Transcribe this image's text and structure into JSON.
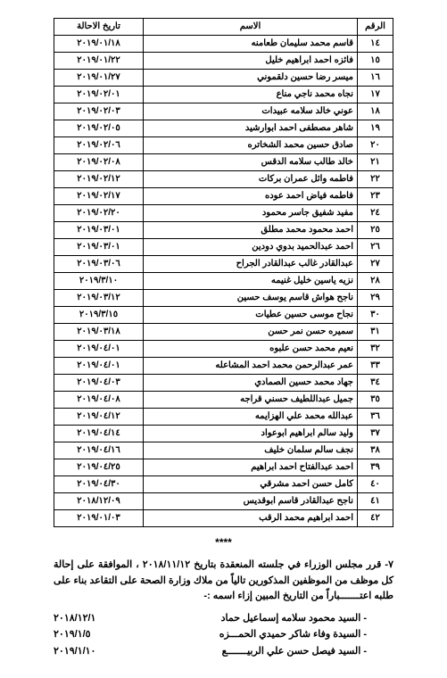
{
  "table": {
    "headers": {
      "num": "الرقم",
      "name": "الاسم",
      "date": "تاريخ الاحالة"
    },
    "rows": [
      {
        "num": "١٤",
        "name": "قاسم محمد سليمان طعامنه",
        "date": "٢٠١٩/٠١/١٨"
      },
      {
        "num": "١٥",
        "name": "فائزه احمد ابراهيم خليل",
        "date": "٢٠١٩/٠١/٢٢"
      },
      {
        "num": "١٦",
        "name": "ميسر رضا حسين دلقموني",
        "date": "٢٠١٩/٠١/٢٧"
      },
      {
        "num": "١٧",
        "name": "نجاه محمد ناجي مناع",
        "date": "٢٠١٩/٠٢/٠١"
      },
      {
        "num": "١٨",
        "name": "عوني خالد سلامه عبيدات",
        "date": "٢٠١٩/٠٢/٠٣"
      },
      {
        "num": "١٩",
        "name": "شاهر مصطفى احمد ابوارشيد",
        "date": "٢٠١٩/٠٢/٠٥"
      },
      {
        "num": "٢٠",
        "name": "صادق حسين محمد الشخاتره",
        "date": "٢٠١٩/٠٢/٠٦"
      },
      {
        "num": "٢١",
        "name": "خالد طالب سلامه الدقس",
        "date": "٢٠١٩/٠٢/٠٨"
      },
      {
        "num": "٢٢",
        "name": "فاطمه وائل عمران بركات",
        "date": "٢٠١٩/٠٢/١٢"
      },
      {
        "num": "٢٣",
        "name": "فاطمه فياض احمد عوده",
        "date": "٢٠١٩/٠٢/١٧"
      },
      {
        "num": "٢٤",
        "name": "مفيد شفيق جاسر محمود",
        "date": "٢٠١٩/٠٢/٢٠"
      },
      {
        "num": "٢٥",
        "name": "احمد محمود محمد مطلق",
        "date": "٢٠١٩/٠٣/٠١"
      },
      {
        "num": "٢٦",
        "name": "احمد عبدالحميد بدوي دودين",
        "date": "٢٠١٩/٠٣/٠١"
      },
      {
        "num": "٢٧",
        "name": "عبدالقادر غالب عبدالقادر الجراح",
        "date": "٢٠١٩/٠٣/٠٦"
      },
      {
        "num": "٢٨",
        "name": "نزيه ياسين خليل غنيمه",
        "date": "٢٠١٩/٣/١٠"
      },
      {
        "num": "٢٩",
        "name": "ناجح هواش قاسم يوسف حسين",
        "date": "٢٠١٩/٠٣/١٢"
      },
      {
        "num": "٣٠",
        "name": "نجاح موسى حسين عطيات",
        "date": "٢٠١٩/٣/١٥"
      },
      {
        "num": "٣١",
        "name": "سميره حسن نمر حسن",
        "date": "٢٠١٩/٠٣/١٨"
      },
      {
        "num": "٣٢",
        "name": "نعيم محمد حسن علبوه",
        "date": "٢٠١٩/٠٤/٠١"
      },
      {
        "num": "٣٣",
        "name": "عمر عبدالرحمن محمد احمد المشاعله",
        "date": "٢٠١٩/٠٤/٠١"
      },
      {
        "num": "٣٤",
        "name": "جهاد محمد حسين الصمادي",
        "date": "٢٠١٩/٠٤/٠٣"
      },
      {
        "num": "٣٥",
        "name": "جميل عبداللطيف حسني قراجه",
        "date": "٢٠١٩/٠٤/٠٨"
      },
      {
        "num": "٣٦",
        "name": "عبدالله محمد علي الهزايمه",
        "date": "٢٠١٩/٠٤/١٢"
      },
      {
        "num": "٣٧",
        "name": "وليد سالم ابراهيم ابوعواد",
        "date": "٢٠١٩/٠٤/١٤"
      },
      {
        "num": "٣٨",
        "name": "نجف سالم سلمان خليف",
        "date": "٢٠١٩/٠٤/١٦"
      },
      {
        "num": "٣٩",
        "name": "احمد عبدالفتاح احمد ابراهيم",
        "date": "٢٠١٩/٠٤/٢٥"
      },
      {
        "num": "٤٠",
        "name": "كامل حسن احمد مشرقي",
        "date": "٢٠١٩/٠٤/٣٠"
      },
      {
        "num": "٤١",
        "name": "ناجح عبدالقادر قاسم ابوقديس",
        "date": "٢٠١٨/١٢/٠٩"
      },
      {
        "num": "٤٢",
        "name": "احمد ابراهيم محمد الرقب",
        "date": "٢٠١٩/٠١/٠٣"
      }
    ]
  },
  "separator": "****",
  "paragraph": "٧- قرر مجلس الوزراء في جلسته المنعقدة بتاريخ ٢٠١٨/١١/١٢ ، الموافقة على إحالة كل موظف من الموظفين المذكورين تالياً من ملاك وزارة الصحة على التقاعد بناء على طلبه اعتـــــــباراً من التاريخ المبين إزاء اسمه :-",
  "list": [
    {
      "name": "- السيد محمود سلامه إسماعيل حماد",
      "date": "٢٠١٨/١٢/١"
    },
    {
      "name": "- السيدة وفاء شاكر حميدي الحمـــزه",
      "date": "٢٠١٩/١/٥"
    },
    {
      "name": "- السيد فيصل حسن علي الربيـــــــع",
      "date": "٢٠١٩/١/١٠"
    }
  ]
}
